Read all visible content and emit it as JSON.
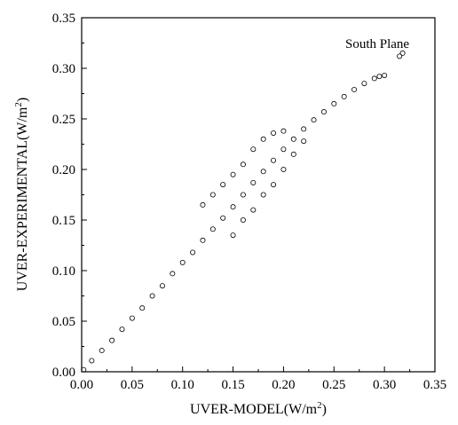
{
  "chart_data": {
    "type": "scatter",
    "title": "",
    "annotation": "South Plane",
    "xlabel": "UVER-MODEL(W/m",
    "xlabel_sup": "2",
    "xlabel_end": ")",
    "ylabel": "UVER-EXPERIMENTAL(W/m",
    "ylabel_sup": "2",
    "ylabel_end": ")",
    "xlim": [
      0.0,
      0.35
    ],
    "ylim": [
      0.0,
      0.35
    ],
    "xticks": [
      "0.00",
      "0.05",
      "0.10",
      "0.15",
      "0.20",
      "0.25",
      "0.30",
      "0.35"
    ],
    "yticks": [
      "0.00",
      "0.05",
      "0.10",
      "0.15",
      "0.20",
      "0.25",
      "0.30",
      "0.35"
    ],
    "grid": false,
    "marker": "open-circle",
    "marker_color": "#000000",
    "series": [
      {
        "points": [
          [
            0.002,
            0.002
          ],
          [
            0.01,
            0.011
          ],
          [
            0.02,
            0.021
          ],
          [
            0.03,
            0.031
          ],
          [
            0.04,
            0.042
          ],
          [
            0.05,
            0.053
          ],
          [
            0.06,
            0.063
          ],
          [
            0.07,
            0.075
          ],
          [
            0.08,
            0.085
          ],
          [
            0.09,
            0.097
          ],
          [
            0.1,
            0.108
          ],
          [
            0.11,
            0.118
          ],
          [
            0.12,
            0.13
          ],
          [
            0.13,
            0.141
          ],
          [
            0.14,
            0.152
          ],
          [
            0.15,
            0.163
          ],
          [
            0.16,
            0.175
          ],
          [
            0.17,
            0.187
          ],
          [
            0.18,
            0.198
          ],
          [
            0.19,
            0.209
          ],
          [
            0.2,
            0.22
          ],
          [
            0.21,
            0.23
          ],
          [
            0.22,
            0.24
          ],
          [
            0.23,
            0.249
          ],
          [
            0.24,
            0.257
          ],
          [
            0.25,
            0.265
          ],
          [
            0.26,
            0.272
          ],
          [
            0.27,
            0.279
          ],
          [
            0.28,
            0.285
          ],
          [
            0.29,
            0.29
          ],
          [
            0.295,
            0.292
          ],
          [
            0.3,
            0.293
          ],
          [
            0.315,
            0.312
          ],
          [
            0.318,
            0.315
          ],
          [
            0.13,
            0.175
          ],
          [
            0.16,
            0.205
          ],
          [
            0.17,
            0.22
          ],
          [
            0.18,
            0.23
          ],
          [
            0.19,
            0.236
          ],
          [
            0.2,
            0.238
          ],
          [
            0.15,
            0.195
          ],
          [
            0.14,
            0.185
          ],
          [
            0.12,
            0.165
          ],
          [
            0.15,
            0.135
          ],
          [
            0.17,
            0.16
          ],
          [
            0.18,
            0.175
          ],
          [
            0.2,
            0.2
          ],
          [
            0.21,
            0.215
          ],
          [
            0.22,
            0.228
          ],
          [
            0.16,
            0.15
          ],
          [
            0.19,
            0.185
          ]
        ]
      }
    ]
  }
}
